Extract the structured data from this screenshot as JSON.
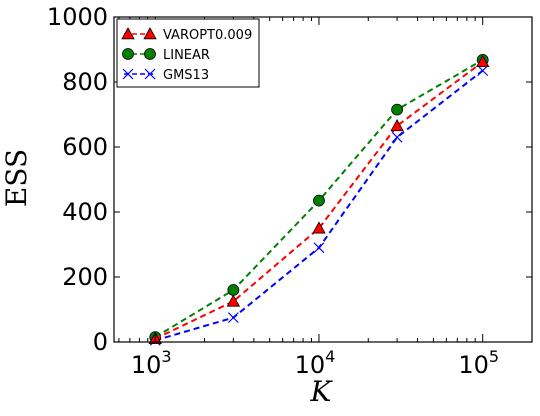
{
  "chart_data": {
    "type": "line",
    "xlabel": "K",
    "ylabel": "ESS",
    "xscale": "log",
    "xlim": [
      560,
      200000
    ],
    "ylim": [
      0,
      1000
    ],
    "y_ticks": [
      "0",
      "200",
      "400",
      "600",
      "800",
      "1000"
    ],
    "x_ticks": [
      {
        "value": 1000,
        "base": "10",
        "exp": "3"
      },
      {
        "value": 10000,
        "base": "10",
        "exp": "4"
      },
      {
        "value": 100000,
        "base": "10",
        "exp": "5"
      }
    ],
    "grid": false,
    "legend_position": "top-left",
    "x": [
      1000,
      3000,
      10000,
      30000,
      100000
    ],
    "series": [
      {
        "name": "VAROPT0.009",
        "color": "#ff0000",
        "marker": "triangle",
        "values": [
          10,
          125,
          350,
          665,
          862
        ]
      },
      {
        "name": "LINEAR",
        "color": "#008000",
        "marker": "circle",
        "values": [
          15,
          160,
          435,
          715,
          868
        ]
      },
      {
        "name": "GMS13",
        "color": "#0000ff",
        "marker": "x",
        "values": [
          5,
          75,
          290,
          630,
          835
        ]
      }
    ]
  }
}
